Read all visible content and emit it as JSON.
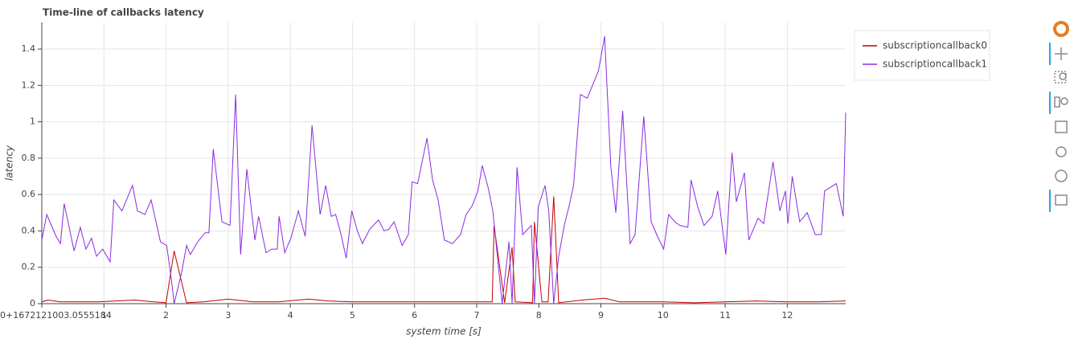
{
  "chart_data": {
    "type": "line",
    "title": "Time-line of callbacks latency",
    "xlabel": "system time [s]",
    "ylabel": "latency",
    "xlim": [
      0,
      12.94
    ],
    "ylim": [
      0,
      1.546
    ],
    "xticks": [
      {
        "value": 0,
        "label": "0+1672121003.0555184"
      },
      1,
      2,
      3,
      4,
      5,
      6,
      7,
      8,
      9,
      10,
      11,
      12
    ],
    "yticks": [
      0,
      0.2,
      0.4,
      0.6,
      0.8,
      1,
      1.2,
      1.4
    ],
    "grid": true,
    "legend": "outside-top-right",
    "series": [
      {
        "name": "subscriptioncallback0",
        "color": "#c00000",
        "x": [
          0,
          0.1,
          0.3,
          0.6,
          0.9,
          1.2,
          1.5,
          1.8,
          2.0,
          2.13,
          2.33,
          2.6,
          3.0,
          3.4,
          3.8,
          4.3,
          4.6,
          5.0,
          5.5,
          6.0,
          6.5,
          7.0,
          7.25,
          7.28,
          7.45,
          7.57,
          7.62,
          7.9,
          7.93,
          8.05,
          8.15,
          8.24,
          8.32,
          8.7,
          9.06,
          9.3,
          10,
          10.5,
          11,
          11.5,
          12,
          12.5,
          12.94
        ],
        "values": [
          0.01,
          0.02,
          0.01,
          0.01,
          0.01,
          0.015,
          0.02,
          0.01,
          0.005,
          0.29,
          0.005,
          0.01,
          0.025,
          0.01,
          0.01,
          0.025,
          0.015,
          0.01,
          0.01,
          0.01,
          0.01,
          0.01,
          0.01,
          0.43,
          0.005,
          0.31,
          0.01,
          0.005,
          0.45,
          0.01,
          0.01,
          0.59,
          0.005,
          0.02,
          0.03,
          0.01,
          0.01,
          0.005,
          0.01,
          0.015,
          0.01,
          0.01,
          0.015
        ]
      },
      {
        "name": "subscriptioncallback1",
        "color": "#8a2be2",
        "x": [
          0,
          0.08,
          0.23,
          0.3,
          0.36,
          0.52,
          0.62,
          0.71,
          0.8,
          0.88,
          0.98,
          1.1,
          1.16,
          1.29,
          1.46,
          1.54,
          1.66,
          1.76,
          1.91,
          2.01,
          2.08,
          2.13,
          2.25,
          2.33,
          2.39,
          2.51,
          2.63,
          2.69,
          2.76,
          2.9,
          3.03,
          3.12,
          3.2,
          3.3,
          3.43,
          3.49,
          3.61,
          3.7,
          3.79,
          3.82,
          3.91,
          4.01,
          4.13,
          4.24,
          4.35,
          4.48,
          4.57,
          4.66,
          4.73,
          4.81,
          4.9,
          4.99,
          5.08,
          5.16,
          5.28,
          5.42,
          5.51,
          5.59,
          5.67,
          5.8,
          5.9,
          5.96,
          6.05,
          6.2,
          6.29,
          6.38,
          6.48,
          6.61,
          6.74,
          6.83,
          6.93,
          7.02,
          7.09,
          7.19,
          7.26,
          7.41,
          7.52,
          7.57,
          7.65,
          7.74,
          7.88,
          7.93,
          7.99,
          8.1,
          8.16,
          8.24,
          8.32,
          8.41,
          8.49,
          8.56,
          8.67,
          8.78,
          8.96,
          9.06,
          9.16,
          9.24,
          9.35,
          9.47,
          9.55,
          9.69,
          9.81,
          9.91,
          10.01,
          10.09,
          10.19,
          10.27,
          10.4,
          10.45,
          10.56,
          10.66,
          10.79,
          10.88,
          11.01,
          11.11,
          11.18,
          11.31,
          11.38,
          11.53,
          11.62,
          11.77,
          11.88,
          11.97,
          12.01,
          12.08,
          12.2,
          12.32,
          12.45,
          12.55,
          12.6,
          12.79,
          12.9,
          12.94
        ],
        "values": [
          0.35,
          0.49,
          0.37,
          0.33,
          0.55,
          0.29,
          0.42,
          0.3,
          0.36,
          0.26,
          0.3,
          0.23,
          0.57,
          0.51,
          0.65,
          0.51,
          0.49,
          0.57,
          0.34,
          0.32,
          0.15,
          0,
          0.17,
          0.32,
          0.27,
          0.34,
          0.39,
          0.39,
          0.85,
          0.45,
          0.43,
          1.15,
          0.27,
          0.74,
          0.35,
          0.48,
          0.28,
          0.3,
          0.3,
          0.48,
          0.28,
          0.36,
          0.51,
          0.37,
          0.98,
          0.49,
          0.65,
          0.48,
          0.49,
          0.39,
          0.25,
          0.51,
          0.4,
          0.33,
          0.41,
          0.46,
          0.4,
          0.41,
          0.45,
          0.32,
          0.38,
          0.67,
          0.66,
          0.91,
          0.68,
          0.57,
          0.35,
          0.33,
          0.38,
          0.49,
          0.54,
          0.62,
          0.76,
          0.63,
          0.51,
          0,
          0.34,
          0,
          0.75,
          0.38,
          0.43,
          0,
          0.53,
          0.65,
          0.51,
          0,
          0.26,
          0.43,
          0.54,
          0.65,
          1.15,
          1.13,
          1.28,
          1.47,
          0.75,
          0.5,
          1.06,
          0.33,
          0.38,
          1.03,
          0.45,
          0.37,
          0.3,
          0.49,
          0.45,
          0.43,
          0.42,
          0.68,
          0.53,
          0.43,
          0.48,
          0.62,
          0.27,
          0.83,
          0.56,
          0.72,
          0.35,
          0.47,
          0.44,
          0.78,
          0.51,
          0.62,
          0.44,
          0.7,
          0.45,
          0.5,
          0.38,
          0.38,
          0.62,
          0.66,
          0.48,
          1.05
        ]
      }
    ]
  }
}
